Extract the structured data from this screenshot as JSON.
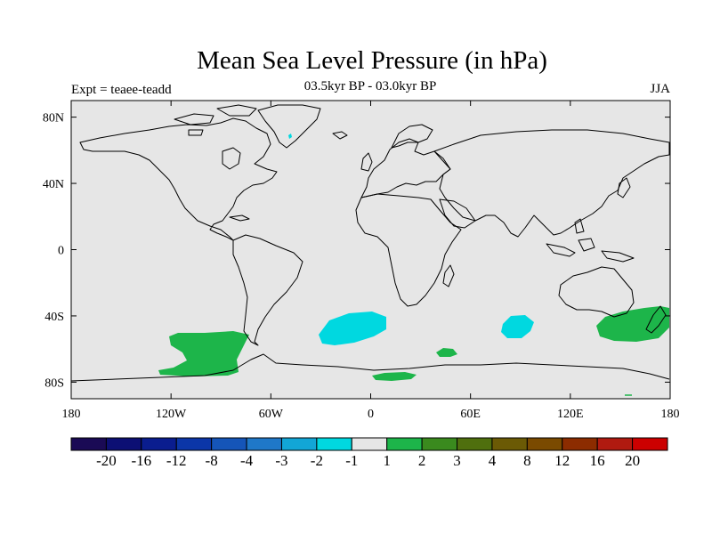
{
  "title": "Mean Sea Level Pressure (in hPa)",
  "subtitle": "03.5kyr BP - 03.0kyr BP",
  "left_label": "Expt = teaee-teadd",
  "right_label": "JJA",
  "map": {
    "projection": "cylindrical-equidistant",
    "lon_range": [
      -180,
      180
    ],
    "lat_range": [
      -90,
      90
    ],
    "background_color": "#e6e6e6",
    "coastline_color": "#000000",
    "lat_ticks": [
      {
        "value": 80,
        "label": "80N"
      },
      {
        "value": 40,
        "label": "40N"
      },
      {
        "value": 0,
        "label": "0"
      },
      {
        "value": -40,
        "label": "40S"
      },
      {
        "value": -80,
        "label": "80S"
      }
    ],
    "lon_ticks": [
      {
        "value": -180,
        "label": "180"
      },
      {
        "value": -120,
        "label": "120W"
      },
      {
        "value": -60,
        "label": "60W"
      },
      {
        "value": 0,
        "label": "0"
      },
      {
        "value": 60,
        "label": "60E"
      },
      {
        "value": 120,
        "label": "120E"
      },
      {
        "value": 180,
        "label": "180"
      }
    ],
    "anomaly_regions": [
      {
        "name": "south-pacific-positive",
        "level": "1 to 2",
        "color": "#1db54a"
      },
      {
        "name": "south-atlantic-negative",
        "level": "-2 to -1",
        "color": "#00d8e0"
      },
      {
        "name": "south-indian-negative",
        "level": "-2 to -1",
        "color": "#00d8e0"
      },
      {
        "name": "tasman-sea-positive",
        "level": "1 to 2",
        "color": "#1db54a"
      },
      {
        "name": "southern-ocean-positive-small",
        "level": "1 to 2",
        "color": "#1db54a"
      },
      {
        "name": "antarctic-coast-positive",
        "level": "1 to 2",
        "color": "#1db54a"
      },
      {
        "name": "greenland-negative-dot",
        "level": "-2 to -1",
        "color": "#00d8e0"
      }
    ]
  },
  "colorbar": {
    "colors": [
      "#1a0a55",
      "#0c0f74",
      "#0a1d8f",
      "#0b36a8",
      "#1555b8",
      "#1f78c8",
      "#12a6d6",
      "#00d8e0",
      "#e6e6e6",
      "#1db54a",
      "#3a8a1e",
      "#4f6f0e",
      "#6b5a05",
      "#7a4a00",
      "#8c2c00",
      "#b01a10",
      "#cc0000"
    ],
    "labels": [
      "-20",
      "-16",
      "-12",
      "-8",
      "-4",
      "-3",
      "-2",
      "-1",
      "1",
      "2",
      "3",
      "4",
      "8",
      "12",
      "16",
      "20"
    ]
  }
}
